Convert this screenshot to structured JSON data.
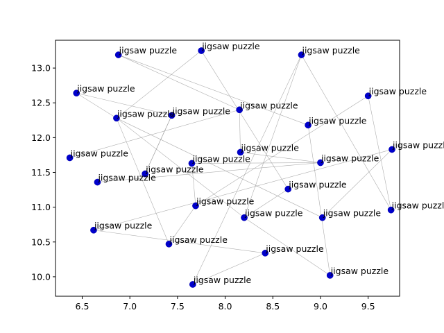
{
  "chart_data": {
    "type": "scatter",
    "title": "",
    "xlabel": "",
    "ylabel": "",
    "xlim": [
      6.22,
      9.83
    ],
    "ylim": [
      9.72,
      13.4
    ],
    "x_ticks": [
      6.5,
      7.0,
      7.5,
      8.0,
      8.5,
      9.0,
      9.5
    ],
    "x_tick_labels": [
      "6.5",
      "7.0",
      "7.5",
      "8.0",
      "8.5",
      "9.0",
      "9.5"
    ],
    "y_ticks": [
      10.0,
      10.5,
      11.0,
      11.5,
      12.0,
      12.5,
      13.0
    ],
    "y_tick_labels": [
      "10.0",
      "10.5",
      "11.0",
      "11.5",
      "12.0",
      "12.5",
      "13.0"
    ],
    "marker_color": "#0000cc",
    "edge_color": "#999999",
    "points": [
      {
        "x": 6.88,
        "y": 13.19,
        "label": "jigsaw puzzle"
      },
      {
        "x": 7.75,
        "y": 13.25,
        "label": "jigsaw puzzle"
      },
      {
        "x": 8.8,
        "y": 13.19,
        "label": "jigsaw puzzle"
      },
      {
        "x": 6.44,
        "y": 12.64,
        "label": "jigsaw puzzle"
      },
      {
        "x": 9.5,
        "y": 12.6,
        "label": "jigsaw puzzle"
      },
      {
        "x": 8.15,
        "y": 12.4,
        "label": "jigsaw puzzle"
      },
      {
        "x": 7.44,
        "y": 12.32,
        "label": "jigsaw puzzle"
      },
      {
        "x": 6.86,
        "y": 12.28,
        "label": "jigsaw puzzle"
      },
      {
        "x": 8.87,
        "y": 12.18,
        "label": "jigsaw puzzle"
      },
      {
        "x": 9.75,
        "y": 11.83,
        "label": "jigsaw puzzle"
      },
      {
        "x": 8.16,
        "y": 11.79,
        "label": "jigsaw puzzle"
      },
      {
        "x": 6.37,
        "y": 11.71,
        "label": "jigsaw puzzle"
      },
      {
        "x": 7.65,
        "y": 11.63,
        "label": "jigsaw puzzle"
      },
      {
        "x": 9.0,
        "y": 11.64,
        "label": "jigsaw puzzle"
      },
      {
        "x": 7.16,
        "y": 11.48,
        "label": "jigsaw puzzle"
      },
      {
        "x": 6.66,
        "y": 11.36,
        "label": "jigsaw puzzle"
      },
      {
        "x": 8.66,
        "y": 11.26,
        "label": "jigsaw puzzle"
      },
      {
        "x": 7.69,
        "y": 11.02,
        "label": "jigsaw puzzle"
      },
      {
        "x": 9.74,
        "y": 10.96,
        "label": "jigsaw puzzle"
      },
      {
        "x": 8.2,
        "y": 10.85,
        "label": "jigsaw puzzle"
      },
      {
        "x": 9.02,
        "y": 10.85,
        "label": "jigsaw puzzle"
      },
      {
        "x": 6.62,
        "y": 10.67,
        "label": "jigsaw puzzle"
      },
      {
        "x": 7.41,
        "y": 10.47,
        "label": "jigsaw puzzle"
      },
      {
        "x": 8.42,
        "y": 10.34,
        "label": "jigsaw puzzle"
      },
      {
        "x": 9.1,
        "y": 10.02,
        "label": "jigsaw puzzle"
      },
      {
        "x": 7.66,
        "y": 9.89,
        "label": "jigsaw puzzle"
      }
    ],
    "edges": [
      [
        0,
        5
      ],
      [
        0,
        8
      ],
      [
        1,
        7
      ],
      [
        1,
        16
      ],
      [
        2,
        19
      ],
      [
        2,
        25
      ],
      [
        2,
        18
      ],
      [
        3,
        7
      ],
      [
        4,
        17
      ],
      [
        4,
        18
      ],
      [
        5,
        11
      ],
      [
        5,
        10
      ],
      [
        6,
        3
      ],
      [
        6,
        14
      ],
      [
        7,
        22
      ],
      [
        7,
        20
      ],
      [
        7,
        19
      ],
      [
        8,
        24
      ],
      [
        9,
        21
      ],
      [
        9,
        20
      ],
      [
        10,
        13
      ],
      [
        12,
        17
      ],
      [
        12,
        13
      ],
      [
        13,
        15
      ],
      [
        14,
        6
      ],
      [
        16,
        19
      ],
      [
        17,
        22
      ],
      [
        21,
        23
      ],
      [
        25,
        23
      ],
      [
        19,
        24
      ]
    ]
  }
}
